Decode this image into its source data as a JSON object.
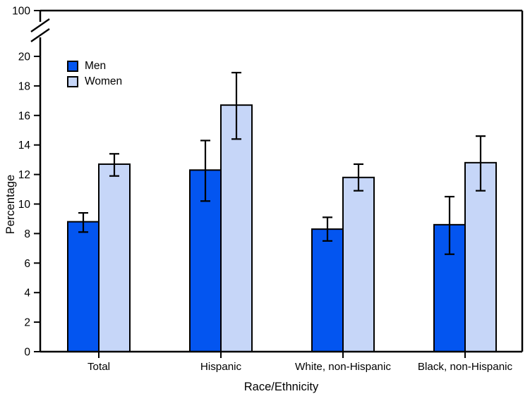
{
  "chart_data": {
    "type": "bar",
    "title": "",
    "xlabel": "Race/Ethnicity",
    "ylabel": "Percentage",
    "categories": [
      "Total",
      "Hispanic",
      "White, non-Hispanic",
      "Black, non-Hispanic"
    ],
    "series": [
      {
        "name": "Men",
        "color": "#0355f0",
        "values": [
          8.8,
          12.3,
          8.3,
          8.6
        ],
        "ci_low": [
          8.1,
          10.2,
          7.5,
          6.6
        ],
        "ci_high": [
          9.4,
          14.3,
          9.1,
          10.5
        ]
      },
      {
        "name": "Women",
        "color": "#c6d6f8",
        "values": [
          12.7,
          16.7,
          11.8,
          12.8
        ],
        "ci_low": [
          11.9,
          14.4,
          10.9,
          10.9
        ],
        "ci_high": [
          13.4,
          18.9,
          12.7,
          14.6
        ]
      }
    ],
    "y_ticks": [
      0,
      2,
      4,
      6,
      8,
      10,
      12,
      14,
      16,
      18,
      20
    ],
    "y_axis_break": {
      "upper_tick_label": "100"
    },
    "ylim": [
      0,
      21.7
    ],
    "grid": false,
    "error_bars": true,
    "legend_position": "inside-top-left",
    "frame": true,
    "axis_color": "#000000"
  }
}
